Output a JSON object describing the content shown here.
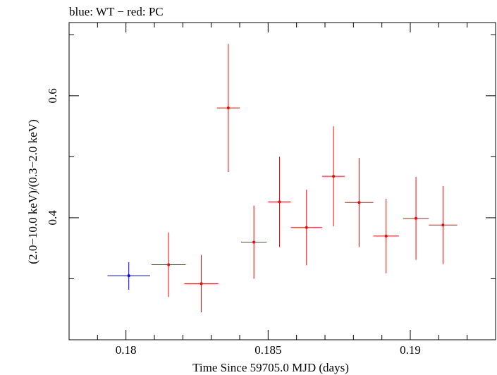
{
  "chart_data": {
    "type": "scatter",
    "title": "blue: WT − red: PC",
    "xlabel": "Time Since 59705.0 MJD (days)",
    "ylabel": "(2.0−10.0 keV)/(0.3−2.0 keV)",
    "xlim": [
      0.178,
      0.193
    ],
    "ylim": [
      0.2,
      0.72
    ],
    "x_major_ticks": [
      0.18,
      0.185,
      0.19
    ],
    "x_tick_labels": [
      "0.18",
      "0.185",
      "0.19"
    ],
    "x_minor_ticks": [
      0.179,
      0.181,
      0.182,
      0.183,
      0.184,
      0.186,
      0.187,
      0.188,
      0.189,
      0.191,
      0.192
    ],
    "y_major_ticks": [
      0.4,
      0.6
    ],
    "y_tick_labels": [
      "0.4",
      "0.6"
    ],
    "y_minor_ticks": [
      0.3,
      0.5,
      0.7
    ],
    "grid": false,
    "series": [
      {
        "name": "WT",
        "color": "#0000ff",
        "points": [
          {
            "x": 0.1801,
            "xerr": 0.00075,
            "y": 0.305,
            "yerr_lo": 0.023,
            "yerr_hi": 0.022
          }
        ]
      },
      {
        "name": "PC",
        "color": "#ff0000",
        "points": [
          {
            "x": 0.1815,
            "xerr": 0.0006,
            "y": 0.323,
            "yerr_lo": 0.053,
            "yerr_hi": 0.053
          },
          {
            "x": 0.18265,
            "xerr": 0.0006,
            "y": 0.292,
            "yerr_lo": 0.047,
            "yerr_hi": 0.047
          },
          {
            "x": 0.1836,
            "xerr": 0.0004,
            "y": 0.58,
            "yerr_lo": 0.105,
            "yerr_hi": 0.105
          },
          {
            "x": 0.1845,
            "xerr": 0.00045,
            "y": 0.36,
            "yerr_lo": 0.06,
            "yerr_hi": 0.06
          },
          {
            "x": 0.1854,
            "xerr": 0.0004,
            "y": 0.426,
            "yerr_lo": 0.074,
            "yerr_hi": 0.074
          },
          {
            "x": 0.18635,
            "xerr": 0.00055,
            "y": 0.384,
            "yerr_lo": 0.062,
            "yerr_hi": 0.062
          },
          {
            "x": 0.1873,
            "xerr": 0.0004,
            "y": 0.468,
            "yerr_lo": 0.082,
            "yerr_hi": 0.082
          },
          {
            "x": 0.1882,
            "xerr": 0.0005,
            "y": 0.425,
            "yerr_lo": 0.073,
            "yerr_hi": 0.073
          },
          {
            "x": 0.18915,
            "xerr": 0.00045,
            "y": 0.37,
            "yerr_lo": 0.061,
            "yerr_hi": 0.061
          },
          {
            "x": 0.1902,
            "xerr": 0.00045,
            "y": 0.399,
            "yerr_lo": 0.068,
            "yerr_hi": 0.068
          },
          {
            "x": 0.19115,
            "xerr": 0.0005,
            "y": 0.388,
            "yerr_lo": 0.064,
            "yerr_hi": 0.064
          }
        ]
      }
    ]
  }
}
